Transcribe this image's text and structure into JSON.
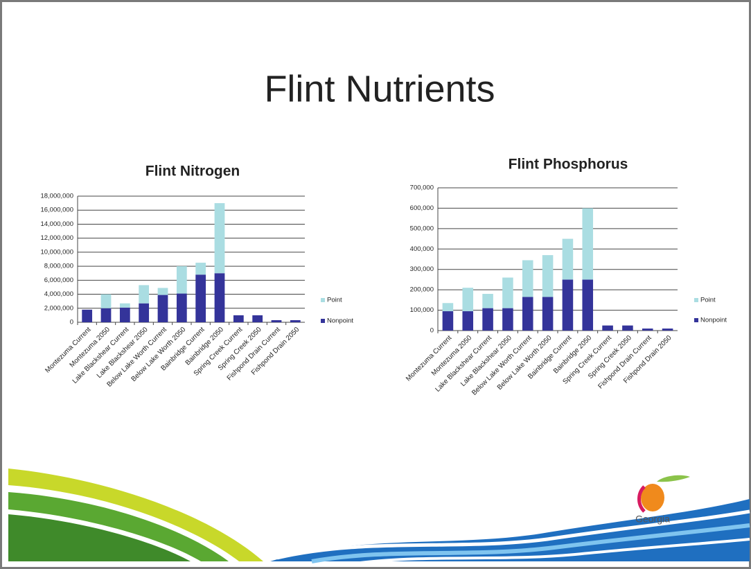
{
  "title": "Flint Nutrients",
  "logo_text": "Georgia",
  "chart_data": [
    {
      "type": "bar",
      "stacked": true,
      "title": "Flint Nitrogen",
      "categories": [
        "Montezuma Current",
        "Montezuma 2050",
        "Lake Blackshear Current",
        "Lake Blackshear 2050",
        "Below Lake Worth Current",
        "Below Lake Worth 2050",
        "Bainbridge Current",
        "Bainbridge 2050",
        "Spring Creek Current",
        "Spring Creek 2050",
        "Fishpond Drain Current",
        "Fishpond Drain 2050"
      ],
      "series": [
        {
          "name": "Nonpoint",
          "color": "#34349a",
          "values": [
            1800000,
            2000000,
            2100000,
            2700000,
            3900000,
            4100000,
            6800000,
            7000000,
            1000000,
            1000000,
            300000,
            300000
          ]
        },
        {
          "name": "Point",
          "color": "#aadde2",
          "values": [
            0,
            2000000,
            600000,
            2600000,
            1000000,
            3900000,
            1700000,
            10000000,
            0,
            0,
            0,
            0
          ]
        }
      ],
      "ylim": [
        0,
        18000000
      ],
      "yticks": [
        0,
        {
          "value": 2000000,
          "label": "2,000,000"
        },
        {
          "value": 4000000,
          "label": "4,000,000"
        },
        {
          "value": 6000000,
          "label": "6,000,000"
        },
        {
          "value": 8000000,
          "label": "8,000,000"
        },
        {
          "value": 10000000,
          "label": "10,000,000"
        },
        {
          "value": 12000000,
          "label": "12,000,000"
        },
        {
          "value": 14000000,
          "label": "14,000,000"
        },
        {
          "value": 16000000,
          "label": "16,000,000"
        },
        {
          "value": 18000000,
          "label": "18,000,000"
        }
      ],
      "grid": true,
      "legend": "right"
    },
    {
      "type": "bar",
      "stacked": true,
      "title": "Flint Phosphorus",
      "categories": [
        "Montezuma Current",
        "Montezuma 2050",
        "Lake Blackshear Current",
        "Lake Blackshear 2050",
        "Below Lake Worth Current",
        "Below Lake Worth 2050",
        "Bainbridge Current",
        "Bainbridge 2050",
        "Spring Creek Current",
        "Spring Creek 2050",
        "Fishpond Drain Current",
        "Fishpond Drain 2050"
      ],
      "series": [
        {
          "name": "Nonpoint",
          "color": "#34349a",
          "values": [
            95000,
            95000,
            110000,
            110000,
            165000,
            165000,
            250000,
            250000,
            25000,
            25000,
            10000,
            10000
          ]
        },
        {
          "name": "Point",
          "color": "#aadde2",
          "values": [
            40000,
            115000,
            70000,
            150000,
            180000,
            205000,
            200000,
            350000,
            0,
            0,
            0,
            0
          ]
        }
      ],
      "ylim": [
        0,
        700000
      ],
      "yticks": [
        0,
        {
          "value": 100000,
          "label": "100,000"
        },
        {
          "value": 200000,
          "label": "200,000"
        },
        {
          "value": 300000,
          "label": "300,000"
        },
        {
          "value": 400000,
          "label": "400,000"
        },
        {
          "value": 500000,
          "label": "500,000"
        },
        {
          "value": 600000,
          "label": "600,000"
        },
        {
          "value": 700000,
          "label": "700,000"
        }
      ],
      "grid": true,
      "legend": "right"
    }
  ]
}
